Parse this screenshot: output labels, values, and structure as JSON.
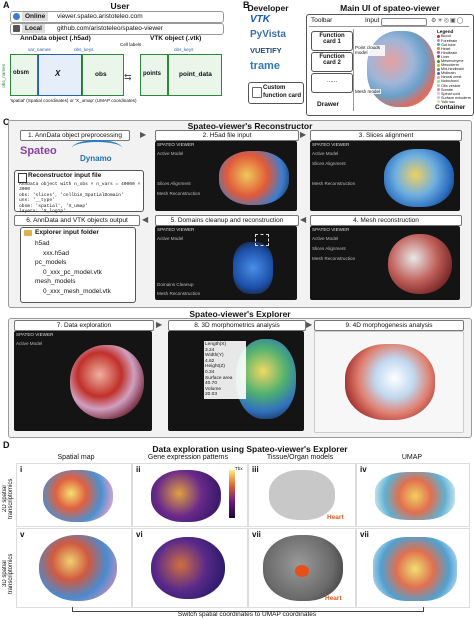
{
  "panels": {
    "a": "A",
    "b": "B",
    "c": "C",
    "d": "D"
  },
  "panel_a": {
    "title": "User",
    "online_label": "Online",
    "online_url": "viewer.spateo.aristoteleo.com",
    "local_label": "Local",
    "local_url": "github.com/aristoteleo/spateo-viewer",
    "anndata_title": "AnnData object (.h5ad)",
    "vtk_title": "VTK object (.vtk)",
    "cell_labels": "Cell labels",
    "var_names": "var_names",
    "obs_keys": "obs_keys",
    "obs_names": "obs_names",
    "x_label": "X",
    "obs_label": "obs",
    "obsm_label": "obsm",
    "points_label": "points",
    "point_data_label": "point_data",
    "footnote": "'spatial' (Spatial coordinates) or 'X_umap' (UMAP coordinates)"
  },
  "panel_b": {
    "developer_title": "Developer",
    "logos": [
      "VTK",
      "PyVista",
      "VUETIFY",
      "trame"
    ],
    "custom_card": "Custom function card",
    "main_title": "Main UI of spateo-viewer",
    "toolbar": "Toolbar",
    "input": "Input",
    "cards": [
      "Function card 1",
      "Function card 2",
      "......"
    ],
    "drawer": "Drawer",
    "point_clouds": "Point clouds model",
    "mesh_model": "Mesh model",
    "container": "Container",
    "legend_title": "Legend",
    "legend_items": [
      "Blood",
      "Forebrain",
      "Gut tube",
      "Heart",
      "Hindbrain",
      "Liver",
      "Mesenchyme",
      "Mesoderm",
      "Mid-hindbrain",
      "Midbrain",
      "Neural crest",
      "Notochord",
      "Otic vesicle",
      "Somite",
      "Spinal cord",
      "Surface ectoderm",
      "Yolk sac"
    ],
    "legend_colors": [
      "#d62728",
      "#e377c2",
      "#17becf",
      "#ff7f0e",
      "#9467bd",
      "#8c564b",
      "#2ca02c",
      "#bcbd22",
      "#7f7f7f",
      "#1f77b4",
      "#ff9896",
      "#98df8a",
      "#c5b0d5",
      "#c49c94",
      "#f7b6d2",
      "#aec7e8",
      "#dbdb8d"
    ]
  },
  "panel_c": {
    "reconstructor_title": "Spateo-viewer's Reconstructor",
    "steps": [
      "1. AnnData object preprocessing",
      "2. H5ad file input",
      "3. Slices alignment",
      "4. Mesh reconstruction",
      "5. Domains cleanup and reconstruction",
      "6. AnnData and VTK objects output"
    ],
    "spateo": "Spateo",
    "dynamo": "Dynamo",
    "input_file_title": "Reconstructor input file",
    "input_file_lines": [
      "AnnData object with n_obs × n_vars = 40000 × 3000",
      "obs: 'slices', 'cellbin_SpatialDomain'",
      "uns: '__type'",
      "obsm: 'spatial', 'X_umap'",
      "layers: 'X_log1p'"
    ],
    "explorer_folder_title": "Explorer input folder",
    "tree": [
      "h5ad",
      "xxx.h5ad",
      "pc_models",
      "0_xxx_pc_model.vtk",
      "mesh_models",
      "0_xxx_mesh_model.vtk"
    ],
    "explorer_title": "Spateo-viewer's Explorer",
    "explorer_steps": [
      "7. Data exploration",
      "8. 3D morphometrics analysis",
      "9. 4D morphogenesis analysis"
    ],
    "viewer_brand": "SPATEO VIEWER",
    "ui_items": [
      "Active Model",
      "Slices Alignment",
      "Mesh Reconstruction",
      "Domains Cleanup",
      "Output"
    ],
    "morpho": {
      "length_label": "Length(X)",
      "length_value": "3.24",
      "width_label": "Width(Y)",
      "width_value": "4.62",
      "height_label": "Height(Z)",
      "height_value": "0.34",
      "area_label": "Surface area",
      "area_value": "40.70",
      "volume_label": "Volume",
      "volume_value": "20.03"
    }
  },
  "panel_d": {
    "title": "Data exploration using Spateo-viewer's Explorer",
    "col_headers": [
      "Spatial map",
      "Gene expression patterns",
      "Tissue/Organ models",
      "UMAP"
    ],
    "row_labels": [
      "2D spatial transcriptomics",
      "3D spatial transcriptomics"
    ],
    "roman": [
      "i",
      "ii",
      "iii",
      "iv",
      "v",
      "vi",
      "vii",
      "vii"
    ],
    "heart": "Heart",
    "colorbar_top": "Tbx",
    "bottom_caption": "Switch spatial coordinates to UMAP coordinates"
  }
}
